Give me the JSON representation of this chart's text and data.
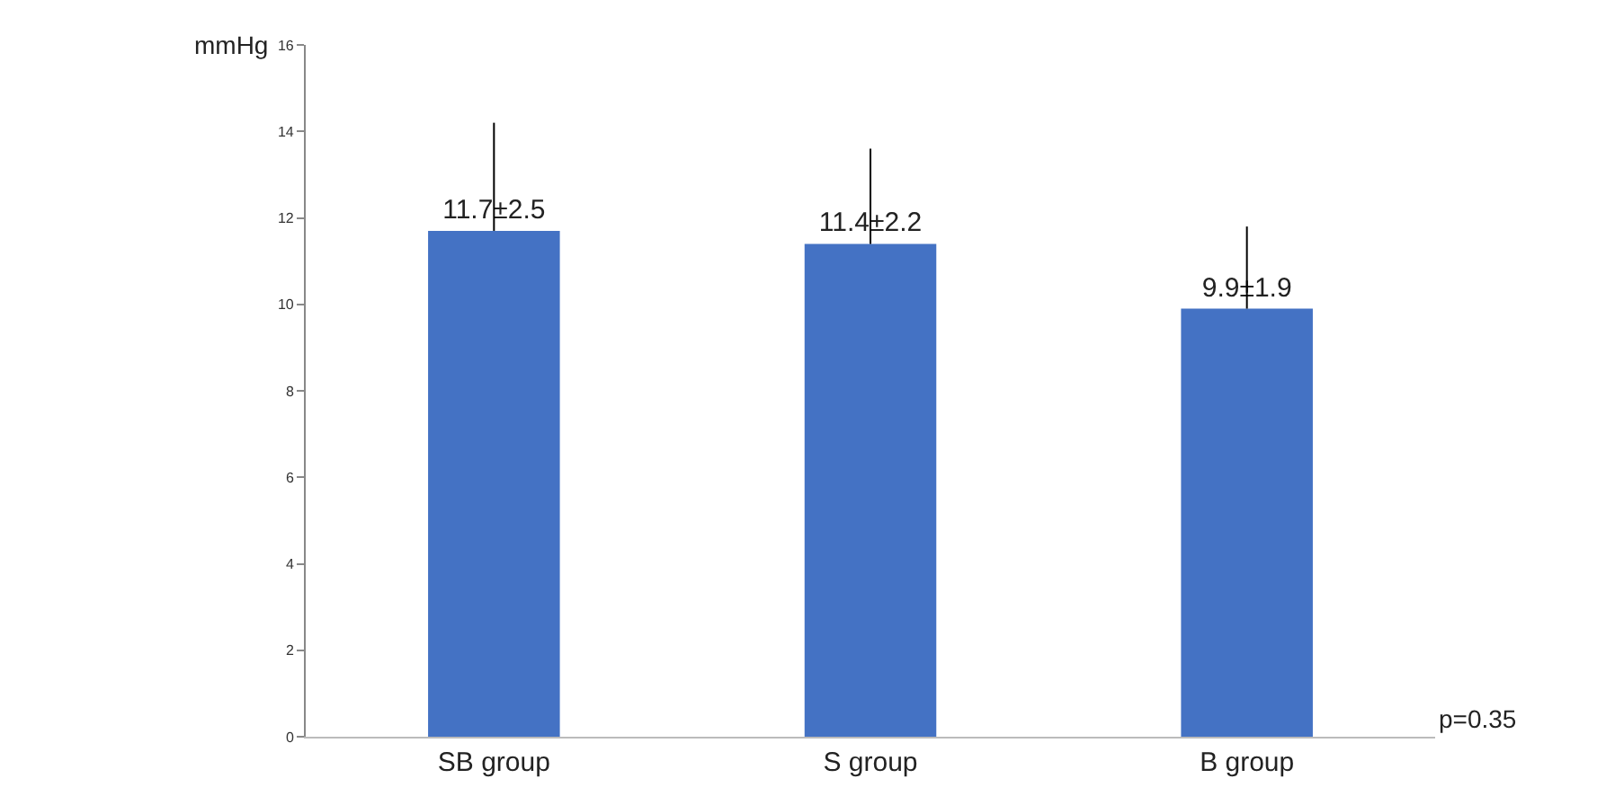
{
  "chart_data": {
    "type": "bar",
    "ylabel": "mmHg",
    "categories": [
      "SB group",
      "S group",
      "B group"
    ],
    "values": [
      11.7,
      11.4,
      9.9
    ],
    "color": "#4472c4",
    "errors": [
      [
        11.7,
        14.2
      ],
      [
        11.4,
        13.6
      ],
      [
        9.9,
        11.8
      ]
    ],
    "value_labels": [
      "11.7±2.5",
      "11.4±2.2",
      "9.9±1.9"
    ],
    "ylim": [
      0,
      16
    ],
    "yticks": [
      0,
      2,
      4,
      6,
      8,
      10,
      12,
      14,
      16
    ],
    "legend": false,
    "annotations": [
      "p=0.35"
    ]
  }
}
